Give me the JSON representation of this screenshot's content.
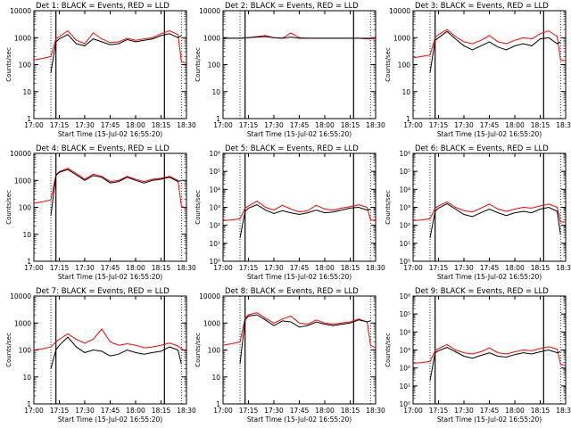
{
  "chart_data": [
    {
      "type": "line",
      "title": "Det 1: BLACK = Events, RED = LLD",
      "xlabel": "Start Time (15-Jul-02 16:55:20)",
      "ylabel": "Counts/sec",
      "xlim": [
        "17:00",
        "18:30"
      ],
      "ylim": [
        1,
        10000
      ],
      "yscale": "log",
      "x_ticks": [
        "17:00",
        "17:15",
        "17:30",
        "17:45",
        "18:00",
        "18:15",
        "18:30"
      ],
      "y_ticks": [
        "1",
        "10",
        "100",
        "1000",
        "10000"
      ],
      "series": [
        {
          "name": "Events",
          "color": "#000000",
          "x_minutes": [
            10,
            13,
            15,
            20,
            25,
            30,
            35,
            40,
            45,
            50,
            55,
            60,
            65,
            70,
            75,
            80,
            85,
            87
          ],
          "values": [
            50,
            700,
            900,
            1300,
            600,
            500,
            900,
            700,
            550,
            600,
            850,
            700,
            800,
            900,
            1200,
            1400,
            1000,
            1200
          ]
        },
        {
          "name": "LLD",
          "color": "#ff0000",
          "x_minutes": [
            0,
            5,
            10,
            13,
            15,
            20,
            25,
            30,
            35,
            40,
            45,
            50,
            55,
            60,
            65,
            70,
            75,
            80,
            85,
            87,
            90
          ],
          "values": [
            150,
            170,
            200,
            900,
            1100,
            1800,
            800,
            600,
            1500,
            900,
            650,
            700,
            950,
            800,
            900,
            1000,
            1400,
            1800,
            1300,
            130,
            110
          ]
        }
      ]
    },
    {
      "type": "line",
      "title": "Det 2: BLACK = Events, RED = LLD",
      "xlabel": "Start Time (15-Jul-02 16:55:20)",
      "ylabel": "Counts/sec",
      "xlim": [
        "17:00",
        "18:30"
      ],
      "ylim": [
        1,
        10000
      ],
      "yscale": "log",
      "x_ticks": [
        "17:00",
        "17:15",
        "17:30",
        "17:45",
        "18:00",
        "18:15",
        "18:30"
      ],
      "y_ticks": [
        "1",
        "10",
        "100",
        "1000",
        "10000"
      ],
      "series": [
        {
          "name": "Events",
          "color": "#000000",
          "x_minutes": [
            0,
            10,
            15,
            20,
            25,
            30,
            35,
            40,
            45,
            50,
            55,
            60,
            65,
            70,
            75,
            80,
            85,
            87
          ],
          "values": [
            950,
            950,
            1000,
            1050,
            1100,
            1000,
            950,
            1050,
            950,
            950,
            950,
            950,
            950,
            950,
            950,
            950,
            950,
            950
          ]
        },
        {
          "name": "LLD",
          "color": "#ff0000",
          "x_minutes": [
            0,
            10,
            15,
            20,
            25,
            30,
            35,
            40,
            45,
            50,
            55,
            60,
            65,
            70,
            75,
            80,
            85,
            90
          ],
          "values": [
            950,
            950,
            1000,
            1100,
            1200,
            1000,
            950,
            1500,
            1000,
            950,
            950,
            950,
            950,
            950,
            950,
            950,
            900,
            900
          ]
        }
      ]
    },
    {
      "type": "line",
      "title": "Det 3: BLACK = Events, RED = LLD",
      "xlabel": "Start Time (15-Jul-02 16:55:20)",
      "ylabel": "Counts/sec",
      "xlim": [
        "17:00",
        "18:30"
      ],
      "ylim": [
        1,
        10000
      ],
      "yscale": "log",
      "x_ticks": [
        "17:00",
        "17:15",
        "17:30",
        "17:45",
        "18:00",
        "18:15",
        "18:30"
      ],
      "y_ticks": [
        "1",
        "10",
        "100",
        "1000",
        "10000"
      ],
      "series": [
        {
          "name": "Events",
          "color": "#000000",
          "x_minutes": [
            10,
            13,
            15,
            20,
            25,
            30,
            35,
            40,
            45,
            50,
            55,
            60,
            65,
            70,
            75,
            80,
            85,
            87
          ],
          "values": [
            50,
            800,
            1000,
            1700,
            900,
            500,
            350,
            500,
            700,
            450,
            350,
            500,
            600,
            500,
            900,
            1000,
            600,
            700
          ]
        },
        {
          "name": "LLD",
          "color": "#ff0000",
          "x_minutes": [
            0,
            5,
            10,
            13,
            15,
            20,
            25,
            30,
            35,
            40,
            45,
            50,
            55,
            60,
            65,
            70,
            75,
            80,
            85,
            87,
            90
          ],
          "values": [
            180,
            200,
            230,
            1000,
            1300,
            2000,
            1100,
            700,
            600,
            800,
            1200,
            700,
            600,
            800,
            1000,
            900,
            1400,
            1800,
            1100,
            150,
            140
          ]
        }
      ]
    },
    {
      "type": "line",
      "title": "Det 4: BLACK = Events, RED = LLD",
      "xlabel": "Start Time (15-Jul-02 16:55:20)",
      "ylabel": "Counts/sec",
      "xlim": [
        "17:00",
        "18:30"
      ],
      "ylim": [
        1,
        10000
      ],
      "yscale": "log",
      "x_ticks": [
        "17:00",
        "17:15",
        "17:30",
        "17:45",
        "18:00",
        "18:15",
        "18:30"
      ],
      "y_ticks": [
        "1",
        "10",
        "100",
        "1000",
        "10000"
      ],
      "series": [
        {
          "name": "Events",
          "color": "#000000",
          "x_minutes": [
            10,
            13,
            15,
            20,
            25,
            30,
            35,
            40,
            45,
            50,
            55,
            60,
            65,
            70,
            75,
            80,
            85,
            87
          ],
          "values": [
            50,
            1500,
            2000,
            2500,
            1600,
            1000,
            1500,
            1300,
            800,
            900,
            1300,
            1000,
            800,
            1000,
            1100,
            1300,
            900,
            1000
          ]
        },
        {
          "name": "LLD",
          "color": "#ff0000",
          "x_minutes": [
            0,
            5,
            10,
            13,
            15,
            20,
            25,
            30,
            35,
            40,
            45,
            50,
            55,
            60,
            65,
            70,
            75,
            80,
            85,
            87,
            90
          ],
          "values": [
            140,
            160,
            190,
            1600,
            2100,
            2800,
            1800,
            1100,
            1700,
            1400,
            900,
            1000,
            1400,
            1100,
            900,
            1100,
            1200,
            1400,
            1000,
            110,
            90
          ]
        }
      ]
    },
    {
      "type": "line",
      "title": "Det 5: BLACK = Events, RED = LLD",
      "xlabel": "Start Time (15-Jul-02 16:55:20)",
      "ylabel": "Counts/sec",
      "xlim": [
        "17:00",
        "18:30"
      ],
      "ylim": [
        1,
        1000000
      ],
      "yscale": "log",
      "x_ticks": [
        "17:00",
        "17:15",
        "17:30",
        "17:45",
        "18:00",
        "18:15",
        "18:30"
      ],
      "y_ticks": [
        "10⁰",
        "10¹",
        "10²",
        "10³",
        "10⁴",
        "10⁵",
        "10⁶"
      ],
      "series": [
        {
          "name": "Events",
          "color": "#000000",
          "x_minutes": [
            10,
            13,
            15,
            20,
            25,
            30,
            35,
            40,
            45,
            50,
            55,
            60,
            65,
            70,
            75,
            80,
            85,
            87
          ],
          "values": [
            20,
            600,
            900,
            1400,
            700,
            450,
            650,
            500,
            400,
            500,
            700,
            500,
            550,
            700,
            900,
            1000,
            700,
            800
          ]
        },
        {
          "name": "LLD",
          "color": "#ff0000",
          "x_minutes": [
            0,
            5,
            10,
            13,
            15,
            20,
            25,
            30,
            35,
            40,
            45,
            50,
            55,
            60,
            65,
            70,
            75,
            80,
            85,
            87,
            90
          ],
          "values": [
            180,
            200,
            230,
            900,
            1200,
            2200,
            1000,
            700,
            1300,
            800,
            550,
            650,
            1300,
            800,
            700,
            900,
            1100,
            1400,
            1000,
            200,
            180
          ]
        }
      ]
    },
    {
      "type": "line",
      "title": "Det 6: BLACK = Events, RED = LLD",
      "xlabel": "Start Time (15-Jul-02 16:55:20)",
      "ylabel": "Counts/sec",
      "xlim": [
        "17:00",
        "18:30"
      ],
      "ylim": [
        1,
        1000000
      ],
      "yscale": "log",
      "x_ticks": [
        "17:00",
        "17:15",
        "17:30",
        "17:45",
        "18:00",
        "18:15",
        "18:30"
      ],
      "y_ticks": [
        "10⁰",
        "10¹",
        "10²",
        "10³",
        "10⁴",
        "10⁵",
        "10⁶"
      ],
      "series": [
        {
          "name": "Events",
          "color": "#000000",
          "x_minutes": [
            10,
            13,
            15,
            20,
            25,
            30,
            35,
            40,
            45,
            50,
            55,
            60,
            65,
            70,
            75,
            80,
            85,
            87
          ],
          "values": [
            20,
            600,
            900,
            1600,
            800,
            400,
            300,
            500,
            800,
            500,
            350,
            500,
            600,
            500,
            800,
            1000,
            600,
            30
          ]
        },
        {
          "name": "LLD",
          "color": "#ff0000",
          "x_minutes": [
            0,
            5,
            10,
            13,
            15,
            20,
            25,
            30,
            35,
            40,
            45,
            50,
            55,
            60,
            65,
            70,
            75,
            80,
            85,
            87,
            90
          ],
          "values": [
            180,
            200,
            230,
            900,
            1200,
            2000,
            1000,
            650,
            550,
            900,
            1500,
            800,
            600,
            800,
            1000,
            900,
            1200,
            1500,
            1000,
            160,
            150
          ]
        }
      ]
    },
    {
      "type": "line",
      "title": "Det 7: BLACK = Events, RED = LLD",
      "xlabel": "Start Time (15-Jul-02 16:55:20)",
      "ylabel": "Counts/sec",
      "xlim": [
        "17:00",
        "18:30"
      ],
      "ylim": [
        1,
        10000
      ],
      "yscale": "log",
      "x_ticks": [
        "17:00",
        "17:15",
        "17:30",
        "17:45",
        "18:00",
        "18:15",
        "18:30"
      ],
      "y_ticks": [
        "1",
        "10",
        "100",
        "1000",
        "10000"
      ],
      "series": [
        {
          "name": "Events",
          "color": "#000000",
          "x_minutes": [
            10,
            13,
            15,
            20,
            25,
            30,
            35,
            40,
            45,
            50,
            55,
            60,
            65,
            70,
            75,
            80,
            85,
            87
          ],
          "values": [
            20,
            100,
            150,
            300,
            130,
            80,
            100,
            90,
            60,
            70,
            100,
            80,
            70,
            80,
            90,
            130,
            100,
            30
          ]
        },
        {
          "name": "LLD",
          "color": "#ff0000",
          "x_minutes": [
            0,
            5,
            10,
            13,
            15,
            20,
            25,
            30,
            35,
            40,
            45,
            50,
            55,
            60,
            65,
            70,
            75,
            80,
            85,
            87,
            90
          ],
          "values": [
            100,
            110,
            130,
            200,
            250,
            400,
            250,
            180,
            250,
            600,
            200,
            150,
            170,
            150,
            120,
            130,
            150,
            180,
            140,
            110,
            90
          ]
        }
      ]
    },
    {
      "type": "line",
      "title": "Det 8: BLACK = Events, RED = LLD",
      "xlabel": "Start Time (15-Jul-02 16:55:20)",
      "ylabel": "Counts/sec",
      "xlim": [
        "17:00",
        "18:30"
      ],
      "ylim": [
        1,
        10000
      ],
      "yscale": "log",
      "x_ticks": [
        "17:00",
        "17:15",
        "17:30",
        "17:45",
        "18:00",
        "18:15",
        "18:30"
      ],
      "y_ticks": [
        "1",
        "10",
        "100",
        "1000",
        "10000"
      ],
      "series": [
        {
          "name": "Events",
          "color": "#000000",
          "x_minutes": [
            10,
            13,
            15,
            20,
            25,
            30,
            35,
            40,
            45,
            50,
            55,
            60,
            65,
            70,
            75,
            80,
            85,
            87
          ],
          "values": [
            30,
            1300,
            1800,
            2000,
            1300,
            800,
            1200,
            1100,
            700,
            800,
            1100,
            900,
            800,
            900,
            1000,
            1300,
            1100,
            1200
          ]
        },
        {
          "name": "LLD",
          "color": "#ff0000",
          "x_minutes": [
            0,
            5,
            10,
            13,
            15,
            20,
            25,
            30,
            35,
            40,
            45,
            50,
            55,
            60,
            65,
            70,
            75,
            80,
            85,
            87,
            90
          ],
          "values": [
            150,
            170,
            200,
            1500,
            2000,
            2400,
            1500,
            1000,
            1400,
            1800,
            1000,
            900,
            1300,
            1000,
            900,
            1000,
            1100,
            1400,
            1100,
            150,
            120
          ]
        }
      ]
    },
    {
      "type": "line",
      "title": "Det 9: BLACK = Events, RED = LLD",
      "xlabel": "Start Time (15-Jul-02 16:55:20)",
      "ylabel": "Counts/sec",
      "xlim": [
        "17:00",
        "18:30"
      ],
      "ylim": [
        1,
        1000000
      ],
      "yscale": "log",
      "x_ticks": [
        "17:00",
        "17:15",
        "17:30",
        "17:45",
        "18:00",
        "18:15",
        "18:30"
      ],
      "y_ticks": [
        "10⁰",
        "10¹",
        "10²",
        "10³",
        "10⁴",
        "10⁵",
        "10⁶"
      ],
      "series": [
        {
          "name": "Events",
          "color": "#000000",
          "x_minutes": [
            10,
            13,
            15,
            20,
            25,
            30,
            35,
            40,
            45,
            50,
            55,
            60,
            65,
            70,
            75,
            80,
            85,
            87
          ],
          "values": [
            20,
            700,
            900,
            1400,
            800,
            450,
            350,
            500,
            700,
            450,
            400,
            550,
            700,
            600,
            800,
            1000,
            700,
            800
          ]
        },
        {
          "name": "LLD",
          "color": "#ff0000",
          "x_minutes": [
            0,
            5,
            10,
            13,
            15,
            20,
            25,
            30,
            35,
            40,
            45,
            50,
            55,
            60,
            65,
            70,
            75,
            80,
            85,
            87,
            90
          ],
          "values": [
            180,
            200,
            230,
            900,
            1200,
            2000,
            1000,
            700,
            600,
            800,
            1300,
            700,
            600,
            800,
            1000,
            900,
            1200,
            1500,
            1100,
            160,
            140
          ]
        }
      ]
    }
  ]
}
